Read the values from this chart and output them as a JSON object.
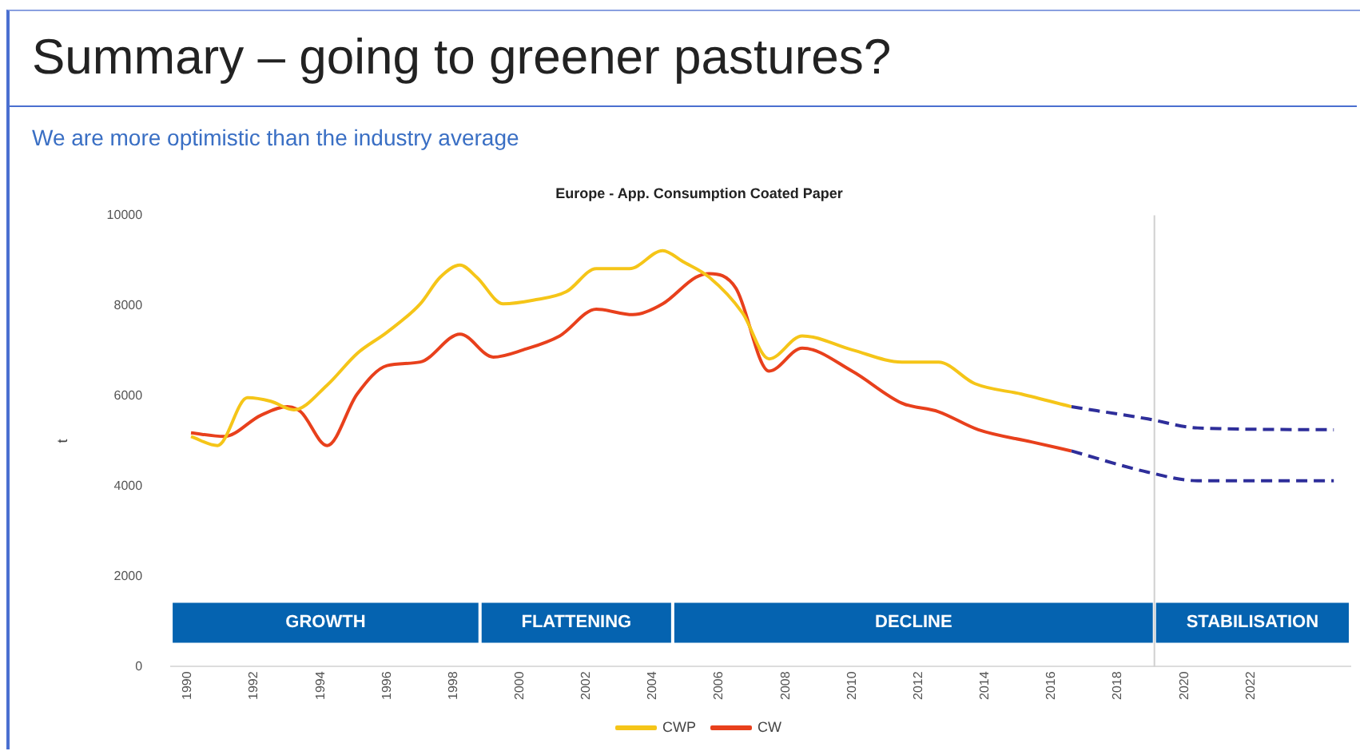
{
  "chart_data": {
    "type": "line",
    "title": "Europe - App. Consumption Coated Paper",
    "ylabel": "t",
    "xlim": [
      1989.5,
      2025
    ],
    "xticks": [
      1990,
      1992,
      1994,
      1996,
      1998,
      2000,
      2002,
      2004,
      2006,
      2008,
      2010,
      2012,
      2014,
      2016,
      2018,
      2020,
      2022
    ],
    "ylim": [
      0,
      10000
    ],
    "yticks": [
      0,
      2000,
      4000,
      6000,
      8000,
      10000
    ],
    "grid": false,
    "legend": "bottom",
    "marker": "none",
    "annotations": [
      "Summary – going to greener pastures?",
      "We are more optimistic than the industry average"
    ],
    "bands": [
      {
        "axis": "x",
        "from": 1989.5,
        "to": 1998.8,
        "label": "GROWTH",
        "color": "#0563b0"
      },
      {
        "axis": "x",
        "from": 1998.8,
        "to": 2004.6,
        "label": "FLATTENING",
        "color": "#0563b0"
      },
      {
        "axis": "x",
        "from": 2004.6,
        "to": 2019.1,
        "label": "DECLINE",
        "color": "#0563b0"
      },
      {
        "axis": "x",
        "from": 2019.1,
        "to": 2025,
        "label": "STABILISATION",
        "color": "#0563b0"
      }
    ],
    "ref_lines": [
      {
        "axis": "x",
        "value": 2019.1,
        "color": "#d0d0d0"
      }
    ],
    "series": [
      {
        "name": "CWP",
        "color": "#f5c518",
        "line_style": "solid",
        "x": [
          1990.1,
          1990.9,
          1991.8,
          1992.5,
          1993.2,
          1994.2,
          1995.1,
          1996.0,
          1997.0,
          1997.6,
          1998.2,
          1998.7,
          1999.5,
          2000.4,
          2001.4,
          2002.3,
          2003.3,
          2004.3,
          2004.9,
          2005.7,
          2006.7,
          2007.5,
          2008.5,
          2010.0,
          2011.5,
          2012.6,
          2013.7,
          2015.1,
          2016.6
        ],
        "values": [
          5100,
          4900,
          5960,
          5880,
          5690,
          6240,
          6940,
          7410,
          8040,
          8630,
          8900,
          8630,
          8040,
          8120,
          8310,
          8820,
          8820,
          9220,
          8980,
          8630,
          7840,
          6820,
          7330,
          7020,
          6750,
          6750,
          6270,
          6040,
          5760
        ]
      },
      {
        "name": "CW",
        "color": "#e8401c",
        "line_style": "solid",
        "x": [
          1990.1,
          1991.1,
          1992.2,
          1993.0,
          1993.4,
          1994.2,
          1995.1,
          1996.0,
          1997.0,
          1998.2,
          1999.2,
          2000.1,
          2001.2,
          2002.3,
          2003.4,
          2004.3,
          2005.3,
          2005.7,
          2006.5,
          2007.5,
          2008.5,
          2010.0,
          2011.5,
          2012.6,
          2013.8,
          2015.4,
          2016.6
        ],
        "values": [
          5180,
          5100,
          5570,
          5760,
          5650,
          4900,
          6040,
          6670,
          6750,
          7370,
          6860,
          7020,
          7330,
          7920,
          7800,
          8040,
          8630,
          8710,
          8390,
          6550,
          7060,
          6550,
          5840,
          5650,
          5250,
          4980,
          4780
        ]
      },
      {
        "color": "#2e2e9a",
        "line_style": "dashed",
        "x": [
          2016.6,
          2018.9,
          2020.4,
          2024.5
        ],
        "values": [
          5760,
          5490,
          5290,
          5250
        ]
      },
      {
        "color": "#2e2e9a",
        "line_style": "dashed",
        "x": [
          2016.6,
          2018.9,
          2020.4,
          2024.5
        ],
        "values": [
          4780,
          4310,
          4120,
          4120
        ]
      }
    ]
  }
}
